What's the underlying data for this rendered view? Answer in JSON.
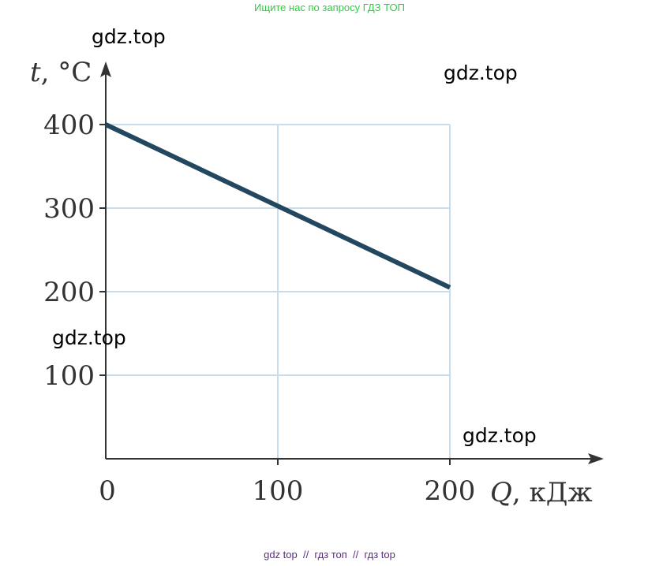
{
  "banner_top": "Ищите нас по запросу ГДЗ ТОП",
  "banner_bottom": "gdz top  //  гдз топ  //  гдз top",
  "watermarks": [
    "gdz.top",
    "gdz.top",
    "gdz.top",
    "gdz.top"
  ],
  "colors": {
    "line": "#23475f",
    "grid": "#c9dcec",
    "axis": "#333333",
    "banner_top": "#2ecc40",
    "banner_bottom": "#5b2a86"
  },
  "chart_data": {
    "type": "line",
    "title": "",
    "ylabel_var": "t",
    "ylabel_unit": ", °C",
    "xlabel_var": "Q",
    "xlabel_unit": ", кДж",
    "x_ticks": [
      "0",
      "100",
      "200"
    ],
    "y_ticks": [
      "100",
      "200",
      "300",
      "400"
    ],
    "xlim": [
      0,
      200
    ],
    "ylim": [
      0,
      400
    ],
    "grid": true,
    "series": [
      {
        "x": [
          0,
          200
        ],
        "y": [
          400,
          205
        ]
      }
    ]
  }
}
